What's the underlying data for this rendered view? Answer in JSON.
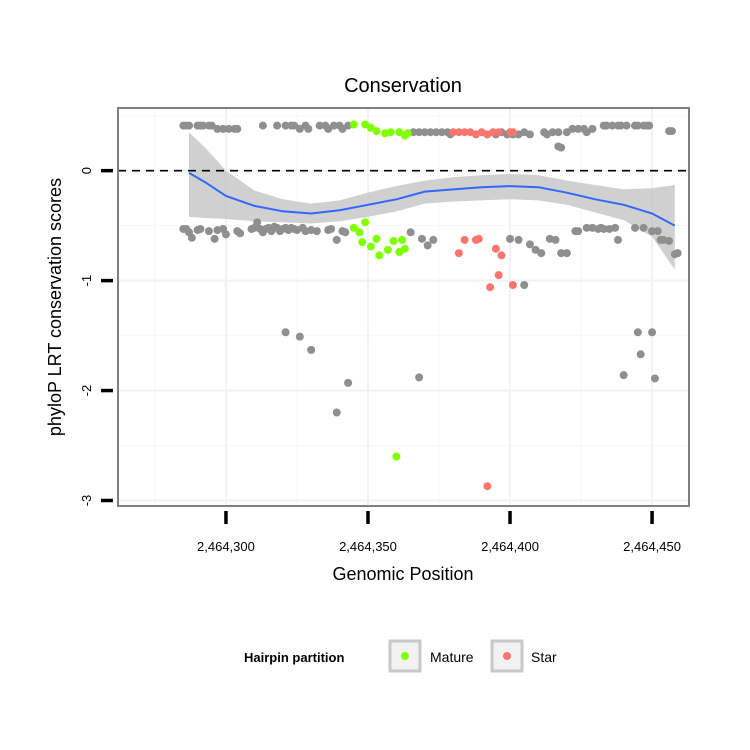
{
  "chart_data": {
    "type": "scatter",
    "title": "Conservation",
    "xlabel": "Genomic Position",
    "ylabel": "phyloP LRT conservation scores",
    "xlim": [
      2464262,
      2464463
    ],
    "ylim": [
      -3.05,
      0.57
    ],
    "x_ticks": [
      {
        "value": 2464300,
        "label": "2,464,300"
      },
      {
        "value": 2464350,
        "label": "2,464,350"
      },
      {
        "value": 2464400,
        "label": "2,464,400"
      },
      {
        "value": 2464450,
        "label": "2,464,450"
      }
    ],
    "y_ticks": [
      {
        "value": 0,
        "label": "0"
      },
      {
        "value": -1,
        "label": "-1"
      },
      {
        "value": -2,
        "label": "-2"
      },
      {
        "value": -3,
        "label": "-3"
      }
    ],
    "reference_line": {
      "y": 0,
      "style": "dashed"
    },
    "legend": {
      "title": "Hairpin partition",
      "position": "bottom",
      "entries": [
        {
          "label": "Mature",
          "color": "#7FFF00"
        },
        {
          "label": "Star",
          "color": "#F8766D"
        }
      ]
    },
    "colors": {
      "other": "#8F8F8F",
      "Mature": "#7FFF00",
      "Star": "#F8766D",
      "smooth": "#3366FF",
      "ribbon": "#C8C8C8"
    },
    "series": [
      {
        "name": "Other",
        "in_legend": false,
        "points": [
          [
            2464285,
            0.41
          ],
          [
            2464286,
            0.41
          ],
          [
            2464287,
            0.41
          ],
          [
            2464290,
            0.41
          ],
          [
            2464291,
            0.41
          ],
          [
            2464292,
            0.41
          ],
          [
            2464294,
            0.41
          ],
          [
            2464295,
            0.41
          ],
          [
            2464297,
            0.38
          ],
          [
            2464299,
            0.38
          ],
          [
            2464301,
            0.38
          ],
          [
            2464303,
            0.38
          ],
          [
            2464304,
            0.38
          ],
          [
            2464313,
            0.41
          ],
          [
            2464318,
            0.41
          ],
          [
            2464321,
            0.41
          ],
          [
            2464323,
            0.41
          ],
          [
            2464324,
            0.41
          ],
          [
            2464326,
            0.38
          ],
          [
            2464328,
            0.41
          ],
          [
            2464329,
            0.38
          ],
          [
            2464333,
            0.41
          ],
          [
            2464335,
            0.41
          ],
          [
            2464336,
            0.38
          ],
          [
            2464338,
            0.41
          ],
          [
            2464340,
            0.41
          ],
          [
            2464341,
            0.38
          ],
          [
            2464343,
            0.41
          ],
          [
            2464366,
            0.35
          ],
          [
            2464368,
            0.35
          ],
          [
            2464370,
            0.35
          ],
          [
            2464372,
            0.35
          ],
          [
            2464374,
            0.35
          ],
          [
            2464376,
            0.35
          ],
          [
            2464378,
            0.35
          ],
          [
            2464379,
            0.33
          ],
          [
            2464395,
            0.33
          ],
          [
            2464397,
            0.35
          ],
          [
            2464399,
            0.33
          ],
          [
            2464401,
            0.33
          ],
          [
            2464403,
            0.33
          ],
          [
            2464405,
            0.35
          ],
          [
            2464407,
            0.33
          ],
          [
            2464412,
            0.35
          ],
          [
            2464413,
            0.33
          ],
          [
            2464415,
            0.35
          ],
          [
            2464417,
            0.35
          ],
          [
            2464417,
            0.22
          ],
          [
            2464418,
            0.21
          ],
          [
            2464420,
            0.35
          ],
          [
            2464422,
            0.38
          ],
          [
            2464424,
            0.38
          ],
          [
            2464426,
            0.38
          ],
          [
            2464427,
            0.35
          ],
          [
            2464429,
            0.38
          ],
          [
            2464433,
            0.41
          ],
          [
            2464434,
            0.41
          ],
          [
            2464436,
            0.41
          ],
          [
            2464438,
            0.41
          ],
          [
            2464439,
            0.41
          ],
          [
            2464441,
            0.41
          ],
          [
            2464444,
            0.41
          ],
          [
            2464445,
            0.41
          ],
          [
            2464447,
            0.41
          ],
          [
            2464448,
            0.41
          ],
          [
            2464449,
            0.41
          ],
          [
            2464456,
            0.36
          ],
          [
            2464457,
            0.36
          ],
          [
            2464285,
            -0.53
          ],
          [
            2464286,
            -0.53
          ],
          [
            2464287,
            -0.56
          ],
          [
            2464288,
            -0.61
          ],
          [
            2464290,
            -0.54
          ],
          [
            2464291,
            -0.53
          ],
          [
            2464294,
            -0.55
          ],
          [
            2464296,
            -0.62
          ],
          [
            2464297,
            -0.54
          ],
          [
            2464299,
            -0.53
          ],
          [
            2464300,
            -0.58
          ],
          [
            2464304,
            -0.55
          ],
          [
            2464305,
            -0.57
          ],
          [
            2464309,
            -0.53
          ],
          [
            2464310,
            -0.52
          ],
          [
            2464311,
            -0.47
          ],
          [
            2464312,
            -0.53
          ],
          [
            2464313,
            -0.56
          ],
          [
            2464314,
            -0.53
          ],
          [
            2464315,
            -0.52
          ],
          [
            2464316,
            -0.55
          ],
          [
            2464317,
            -0.51
          ],
          [
            2464318,
            -0.52
          ],
          [
            2464319,
            -0.55
          ],
          [
            2464320,
            -0.53
          ],
          [
            2464321,
            -0.52
          ],
          [
            2464322,
            -0.54
          ],
          [
            2464323,
            -0.52
          ],
          [
            2464324,
            -0.53
          ],
          [
            2464325,
            -0.54
          ],
          [
            2464327,
            -0.52
          ],
          [
            2464328,
            -0.55
          ],
          [
            2464330,
            -0.54
          ],
          [
            2464332,
            -0.55
          ],
          [
            2464336,
            -0.54
          ],
          [
            2464337,
            -0.53
          ],
          [
            2464339,
            -0.63
          ],
          [
            2464341,
            -0.55
          ],
          [
            2464342,
            -0.56
          ],
          [
            2464365,
            -0.56
          ],
          [
            2464369,
            -0.62
          ],
          [
            2464371,
            -0.68
          ],
          [
            2464373,
            -0.63
          ],
          [
            2464400,
            -0.62
          ],
          [
            2464403,
            -0.63
          ],
          [
            2464407,
            -0.67
          ],
          [
            2464409,
            -0.72
          ],
          [
            2464411,
            -0.75
          ],
          [
            2464414,
            -0.62
          ],
          [
            2464416,
            -0.63
          ],
          [
            2464418,
            -0.75
          ],
          [
            2464420,
            -0.75
          ],
          [
            2464423,
            -0.55
          ],
          [
            2464424,
            -0.55
          ],
          [
            2464427,
            -0.52
          ],
          [
            2464429,
            -0.52
          ],
          [
            2464431,
            -0.53
          ],
          [
            2464432,
            -0.52
          ],
          [
            2464433,
            -0.53
          ],
          [
            2464435,
            -0.53
          ],
          [
            2464437,
            -0.52
          ],
          [
            2464438,
            -0.63
          ],
          [
            2464444,
            -0.52
          ],
          [
            2464447,
            -0.52
          ],
          [
            2464450,
            -0.55
          ],
          [
            2464452,
            -0.55
          ],
          [
            2464453,
            -0.63
          ],
          [
            2464454,
            -0.63
          ],
          [
            2464456,
            -0.64
          ],
          [
            2464458,
            -0.76
          ],
          [
            2464459,
            -0.75
          ],
          [
            2464321,
            -1.47
          ],
          [
            2464326,
            -1.51
          ],
          [
            2464330,
            -1.63
          ],
          [
            2464339,
            -2.2
          ],
          [
            2464343,
            -1.93
          ],
          [
            2464368,
            -1.88
          ],
          [
            2464405,
            -1.04
          ],
          [
            2464440,
            -1.86
          ],
          [
            2464445,
            -1.47
          ],
          [
            2464446,
            -1.67
          ],
          [
            2464450,
            -1.47
          ],
          [
            2464451,
            -1.89
          ]
        ]
      },
      {
        "name": "Mature",
        "in_legend": true,
        "points": [
          [
            2464345,
            0.42
          ],
          [
            2464349,
            0.42
          ],
          [
            2464351,
            0.39
          ],
          [
            2464353,
            0.36
          ],
          [
            2464356,
            0.34
          ],
          [
            2464358,
            0.35
          ],
          [
            2464361,
            0.35
          ],
          [
            2464363,
            0.32
          ],
          [
            2464364,
            0.34
          ],
          [
            2464345,
            -0.52
          ],
          [
            2464347,
            -0.56
          ],
          [
            2464348,
            -0.65
          ],
          [
            2464349,
            -0.47
          ],
          [
            2464351,
            -0.69
          ],
          [
            2464353,
            -0.62
          ],
          [
            2464354,
            -0.77
          ],
          [
            2464357,
            -0.72
          ],
          [
            2464359,
            -0.64
          ],
          [
            2464361,
            -0.74
          ],
          [
            2464362,
            -0.63
          ],
          [
            2464363,
            -0.71
          ],
          [
            2464360,
            -2.6
          ]
        ]
      },
      {
        "name": "Star",
        "in_legend": true,
        "points": [
          [
            2464380,
            0.35
          ],
          [
            2464382,
            0.35
          ],
          [
            2464384,
            0.35
          ],
          [
            2464386,
            0.35
          ],
          [
            2464388,
            0.33
          ],
          [
            2464390,
            0.35
          ],
          [
            2464392,
            0.33
          ],
          [
            2464394,
            0.35
          ],
          [
            2464396,
            0.35
          ],
          [
            2464400,
            0.35
          ],
          [
            2464401,
            0.35
          ],
          [
            2464384,
            -0.63
          ],
          [
            2464388,
            -0.63
          ],
          [
            2464389,
            -0.62
          ],
          [
            2464395,
            -0.71
          ],
          [
            2464396,
            -0.95
          ],
          [
            2464397,
            -0.77
          ],
          [
            2464393,
            -1.06
          ],
          [
            2464401,
            -1.04
          ],
          [
            2464382,
            -0.75
          ],
          [
            2464392,
            -2.87
          ]
        ]
      }
    ],
    "smooth_curve": {
      "method": "loess",
      "fit": [
        [
          2464287,
          -0.02
        ],
        [
          2464293,
          -0.11
        ],
        [
          2464300,
          -0.23
        ],
        [
          2464310,
          -0.32
        ],
        [
          2464320,
          -0.37
        ],
        [
          2464330,
          -0.39
        ],
        [
          2464340,
          -0.36
        ],
        [
          2464350,
          -0.31
        ],
        [
          2464360,
          -0.26
        ],
        [
          2464370,
          -0.19
        ],
        [
          2464380,
          -0.17
        ],
        [
          2464390,
          -0.15
        ],
        [
          2464400,
          -0.14
        ],
        [
          2464410,
          -0.15
        ],
        [
          2464420,
          -0.2
        ],
        [
          2464430,
          -0.26
        ],
        [
          2464440,
          -0.31
        ],
        [
          2464450,
          -0.39
        ],
        [
          2464458,
          -0.5
        ]
      ],
      "lower": [
        [
          2464287,
          -0.42
        ],
        [
          2464293,
          -0.43
        ],
        [
          2464300,
          -0.44
        ],
        [
          2464310,
          -0.46
        ],
        [
          2464320,
          -0.47
        ],
        [
          2464330,
          -0.48
        ],
        [
          2464340,
          -0.46
        ],
        [
          2464350,
          -0.42
        ],
        [
          2464360,
          -0.37
        ],
        [
          2464370,
          -0.3
        ],
        [
          2464380,
          -0.28
        ],
        [
          2464390,
          -0.27
        ],
        [
          2464400,
          -0.26
        ],
        [
          2464410,
          -0.27
        ],
        [
          2464420,
          -0.31
        ],
        [
          2464430,
          -0.38
        ],
        [
          2464440,
          -0.45
        ],
        [
          2464450,
          -0.6
        ],
        [
          2464458,
          -0.9
        ]
      ],
      "upper": [
        [
          2464287,
          0.35
        ],
        [
          2464293,
          0.2
        ],
        [
          2464300,
          0.0
        ],
        [
          2464310,
          -0.18
        ],
        [
          2464320,
          -0.26
        ],
        [
          2464330,
          -0.3
        ],
        [
          2464340,
          -0.27
        ],
        [
          2464350,
          -0.2
        ],
        [
          2464360,
          -0.14
        ],
        [
          2464370,
          -0.09
        ],
        [
          2464380,
          -0.06
        ],
        [
          2464390,
          -0.04
        ],
        [
          2464400,
          -0.03
        ],
        [
          2464410,
          -0.04
        ],
        [
          2464420,
          -0.09
        ],
        [
          2464430,
          -0.13
        ],
        [
          2464440,
          -0.17
        ],
        [
          2464450,
          -0.16
        ],
        [
          2464458,
          -0.13
        ]
      ]
    }
  }
}
